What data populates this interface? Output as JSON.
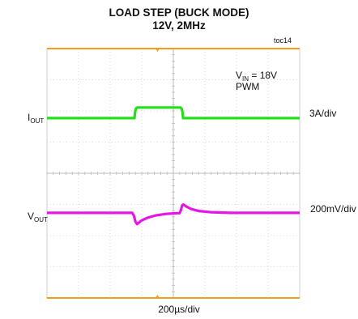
{
  "chart_data": {
    "type": "line",
    "title": "LOAD STEP (BUCK MODE)",
    "subtitle": "12V, 2MHz",
    "tag": "toc14",
    "annotation": {
      "vin_prefix": "V",
      "vin_sub": "IN",
      "vin_value": " = 18V",
      "mode": "PWM"
    },
    "xlabel": "200µs/div",
    "grid": true,
    "divisions": {
      "x": 8,
      "y": 8
    },
    "series": [
      {
        "name_main": "I",
        "name_sub": "OUT",
        "scale": "3A/div",
        "color": "#22e01a",
        "y_divisions": [
          [
            0,
            5.77
          ],
          [
            2.77,
            5.77
          ],
          [
            2.79,
            5.97
          ],
          [
            2.82,
            6.08
          ],
          [
            2.86,
            6.11
          ],
          [
            4.22,
            6.11
          ],
          [
            4.26,
            6.08
          ],
          [
            4.29,
            5.97
          ],
          [
            4.31,
            5.77
          ],
          [
            8,
            5.77
          ]
        ]
      },
      {
        "name_main": "V",
        "name_sub": "OUT",
        "scale": "200mV/div",
        "color": "#e617e6",
        "y_divisions": [
          [
            0,
            2.73
          ],
          [
            2.7,
            2.73
          ],
          [
            2.75,
            2.64
          ],
          [
            2.8,
            2.45
          ],
          [
            2.85,
            2.37
          ],
          [
            2.9,
            2.41
          ],
          [
            3.0,
            2.49
          ],
          [
            3.2,
            2.58
          ],
          [
            3.45,
            2.65
          ],
          [
            3.8,
            2.7
          ],
          [
            4.1,
            2.72
          ],
          [
            4.2,
            2.72
          ],
          [
            4.24,
            2.82
          ],
          [
            4.28,
            2.97
          ],
          [
            4.32,
            3.0
          ],
          [
            4.4,
            2.94
          ],
          [
            4.55,
            2.86
          ],
          [
            4.8,
            2.79
          ],
          [
            5.2,
            2.75
          ],
          [
            5.8,
            2.73
          ],
          [
            8,
            2.73
          ]
        ]
      }
    ],
    "accent_color": "#f59a1c",
    "grid_color": "#cfcfcf"
  }
}
